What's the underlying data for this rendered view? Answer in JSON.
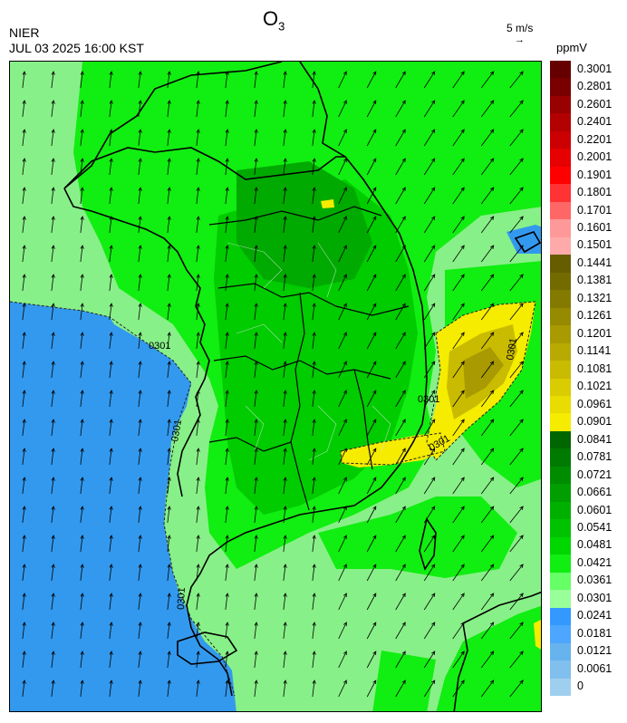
{
  "header": {
    "agency": "NIER",
    "datetime": "JUL 03 2025 16:00 KST",
    "title_main": "O",
    "title_sub": "3",
    "wind_reference": "5 m/s",
    "wind_reference_arrow": "→",
    "units": "ppmV"
  },
  "colorbar": {
    "labels": [
      "0.3001",
      "0.2801",
      "0.2601",
      "0.2401",
      "0.2201",
      "0.2001",
      "0.1901",
      "0.1801",
      "0.1701",
      "0.1601",
      "0.1501",
      "0.1441",
      "0.1381",
      "0.1321",
      "0.1261",
      "0.1201",
      "0.1141",
      "0.1081",
      "0.1021",
      "0.0961",
      "0.0901",
      "0.0841",
      "0.0781",
      "0.0721",
      "0.0661",
      "0.0601",
      "0.0541",
      "0.0481",
      "0.0421",
      "0.0361",
      "0.0301",
      "0.0241",
      "0.0181",
      "0.0121",
      "0.0061",
      "0"
    ],
    "colors": [
      "#660000",
      "#7a0000",
      "#990000",
      "#b30000",
      "#cc0000",
      "#e60000",
      "#ff0000",
      "#ff3333",
      "#ff6666",
      "#ff9999",
      "#ffaaaa",
      "#665c00",
      "#736b00",
      "#857a00",
      "#968a00",
      "#a89a00",
      "#b8aa00",
      "#c9bb00",
      "#d9cc00",
      "#e8dc00",
      "#f5ec00",
      "#006600",
      "#007a00",
      "#008c00",
      "#009e00",
      "#00b000",
      "#00c200",
      "#00d600",
      "#11ee11",
      "#66ff66",
      "#99ff99",
      "#3399ff",
      "#4da6ff",
      "#66b3ee",
      "#80bfee",
      "#9fcfee"
    ]
  },
  "map": {
    "contour_label": "0301",
    "colors": {
      "ocean_low": "#3399ee",
      "light_green": "#99ff99",
      "mid_green": "#11ee11",
      "green": "#00cc00",
      "dark_green": "#00aa00",
      "yellow": "#f5ec00",
      "olive_yellow": "#c9bb00",
      "olive": "#a89a00"
    }
  }
}
